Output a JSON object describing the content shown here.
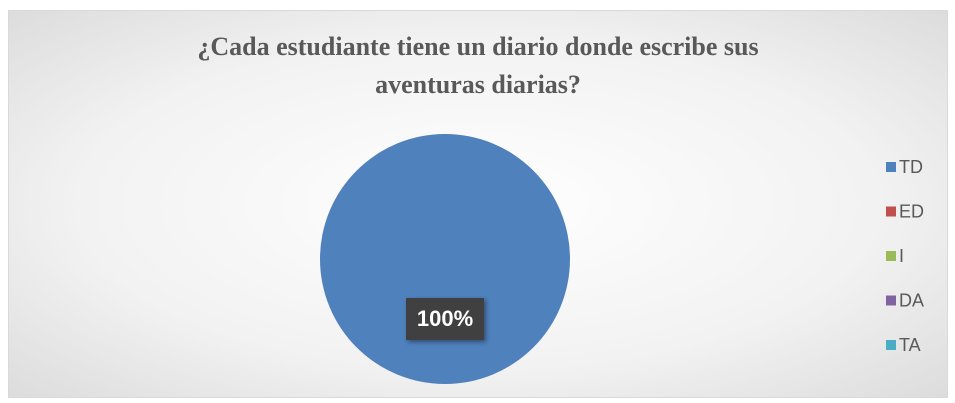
{
  "chart_data": {
    "type": "pie",
    "title": "¿Cada estudiante tiene un diario donde escribe sus aventuras diarias?",
    "categories": [
      "TD",
      "ED",
      "I",
      "DA",
      "TA"
    ],
    "values": [
      100,
      0,
      0,
      0,
      0
    ],
    "value_labels": [
      "100%",
      null,
      null,
      null,
      null
    ],
    "colors": [
      "#4f81bd",
      "#c0504d",
      "#9bbb59",
      "#8064a2",
      "#4bacc6"
    ],
    "legend": "right"
  }
}
